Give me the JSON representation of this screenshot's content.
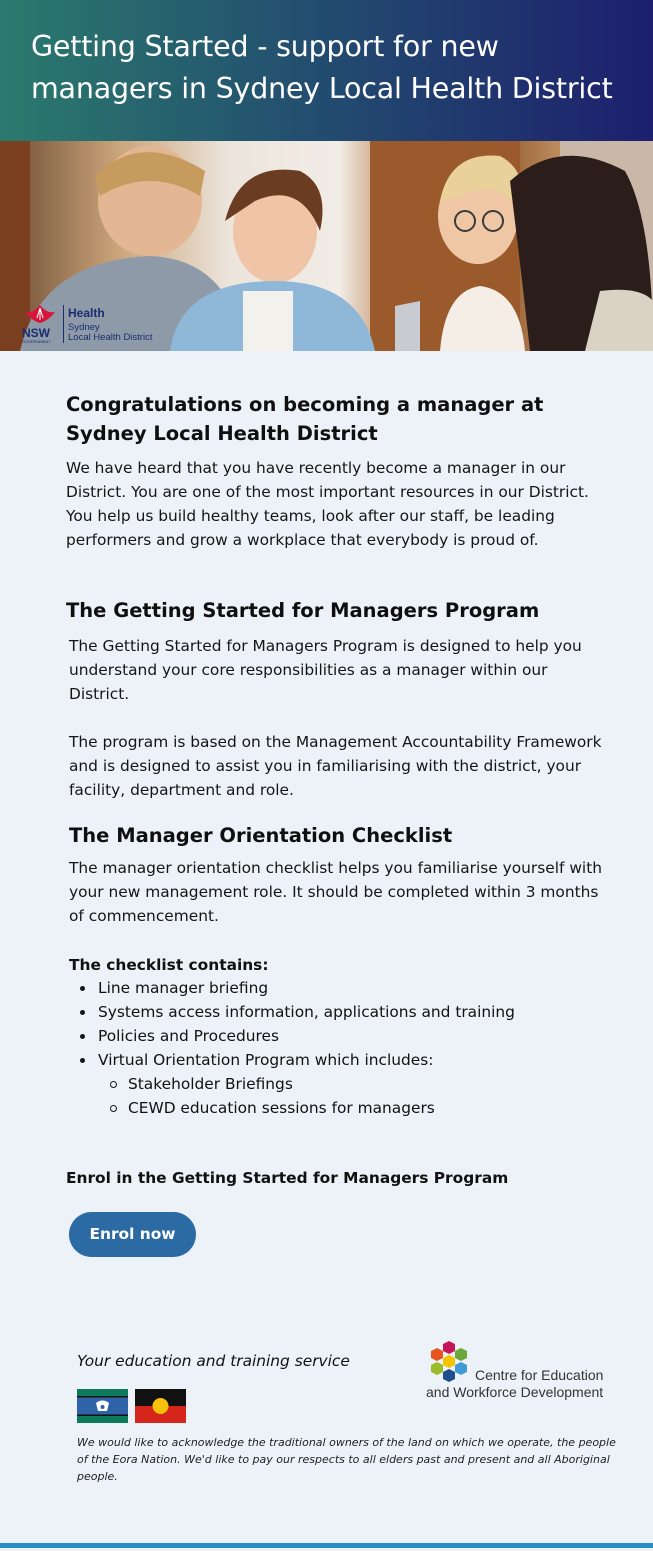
{
  "header": {
    "title": "Getting Started - support for new managers in Sydney Local Health District"
  },
  "logo": {
    "nsw": "NSW",
    "government": "GOVERNMENT",
    "health": "Health",
    "line1": "Sydney",
    "line2": "Local Health District"
  },
  "sections": {
    "congrats": {
      "heading": "Congratulations on becoming a manager at Sydney Local Health District",
      "body": "We have heard that you have recently become a manager in our District. You are one of the most important resources in our District. You help us build healthy teams, look after our staff, be leading performers and grow a workplace that everybody is proud of."
    },
    "program": {
      "heading": "The Getting Started for Managers Program",
      "body1": "The Getting Started for Managers Program is designed to help you understand your core responsibilities as a manager within our District.",
      "body2": "The program is based on the Management Accountability Framework and is designed to assist you in familiarising with the district, your facility, department and role."
    },
    "checklist": {
      "heading": "The Manager Orientation Checklist",
      "body": "The manager orientation checklist helps you familiarise yourself with your new management role. It should be completed within 3 months of commencement.",
      "list_title": "The checklist contains:",
      "items": [
        "Line manager briefing",
        "Systems access information, applications and training",
        "Policies and Procedures",
        "Virtual Orientation Program which includes:"
      ],
      "sub_items": [
        "Stakeholder Briefings",
        "CEWD education sessions for managers"
      ]
    }
  },
  "enrol": {
    "label": "Enrol in the Getting Started for Managers Program",
    "button": "Enrol now"
  },
  "footer": {
    "tagline": "Your education and training service",
    "cewd_line1": "Centre for Education",
    "cewd_line2": "and Workforce Development",
    "acknowledgement": "We would like to acknowledge the traditional owners of the land on which we operate, the people of the Eora Nation. We'd like to pay our respects to all elders past and present and all Aboriginal people."
  },
  "colors": {
    "header_start": "#2b7a6e",
    "header_end": "#1d1f6e",
    "page_bg": "#edf2f9",
    "button": "#2c6aa3",
    "footer_line": "#2a8fc4"
  }
}
